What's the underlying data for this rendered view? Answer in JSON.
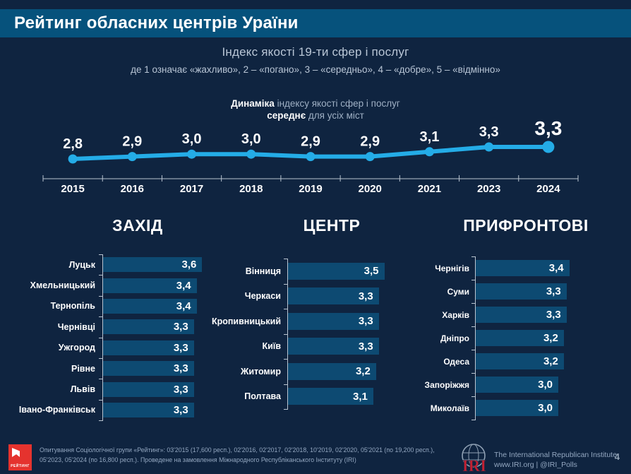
{
  "header": {
    "title": "Рейтинг обласних центрів Ураїни"
  },
  "subtitle": {
    "line1": "Індекс якості 19-ти сфер і послуг",
    "line2": "де 1 означає «жахливо»,  2 – «погано», 3 – «середньо», 4 – «добре», 5 – «відмінно»"
  },
  "trend_heading": {
    "bold1": "Динаміка",
    "rest1": " індексу якості сфер і послуг",
    "bold2": "середнє",
    "rest2": " для усіх міст"
  },
  "chart_data": [
    {
      "type": "line",
      "title": "Динаміка індексу якості сфер і послуг — середнє для усіх міст",
      "x": [
        "2015",
        "2016",
        "2017",
        "2018",
        "2019",
        "2020",
        "2021",
        "2023",
        "2024"
      ],
      "values": [
        2.8,
        2.9,
        3.0,
        3.0,
        2.9,
        2.9,
        3.1,
        3.3,
        3.3
      ],
      "data_labels": [
        "2,8",
        "2,9",
        "3,0",
        "3,0",
        "2,9",
        "2,9",
        "3,1",
        "3,3",
        "3,3"
      ],
      "emphasize_last": true,
      "ylim": [
        2.5,
        3.6
      ],
      "grid": false,
      "legend": "none"
    },
    {
      "type": "bar",
      "title": "ЗАХІД",
      "orientation": "horizontal",
      "categories": [
        "Луцьк",
        "Хмельницький",
        "Тернопіль",
        "Чернівці",
        "Ужгород",
        "Рівне",
        "Львів",
        "Івано-Франківськ"
      ],
      "values": [
        3.6,
        3.4,
        3.4,
        3.3,
        3.3,
        3.3,
        3.3,
        3.3
      ],
      "xlim": [
        0,
        5
      ]
    },
    {
      "type": "bar",
      "title": "ЦЕНТР",
      "orientation": "horizontal",
      "categories": [
        "Вінниця",
        "Черкаси",
        "Кропивницький",
        "Київ",
        "Житомир",
        "Полтава"
      ],
      "values": [
        3.5,
        3.3,
        3.3,
        3.3,
        3.2,
        3.1
      ],
      "xlim": [
        0,
        5
      ]
    },
    {
      "type": "bar",
      "title": "ПРИФРОНТОВІ",
      "orientation": "horizontal",
      "categories": [
        "Чернігів",
        "Суми",
        "Харків",
        "Дніпро",
        "Одеса",
        "Запоріжжя",
        "Миколаїв"
      ],
      "values": [
        3.4,
        3.3,
        3.3,
        3.2,
        3.2,
        3.0,
        3.0
      ],
      "xlim": [
        0,
        5
      ]
    }
  ],
  "footer": {
    "rating_logo_text": "РЕЙТИНГ",
    "survey_note": "Опитування Соціологічної групи «Рейтинг»: 03'2015 (17,600 респ.), 02'2016, 02'2017, 02'2018, 10'2019, 02'2020, 05'2021 (по 19,200 респ.), 05'2023, 05'2024 (по 16,800 респ.). Проведене на замовлення Міжнародного Республіканського Інституту (IRI)",
    "iri_logo_text": "IRI",
    "iri_name": "The International Republican Institute",
    "iri_links": "www.IRI.org | @IRI_Polls",
    "page_number": "4"
  },
  "colors": {
    "background": "#0f2440",
    "banner": "#06527c",
    "bar": "#0d4a72",
    "line": "#24ace7",
    "axis": "#b9c4d0",
    "muted_text": "#9fb0c4",
    "rating_red": "#e5332e",
    "iri_red": "#c32032"
  }
}
